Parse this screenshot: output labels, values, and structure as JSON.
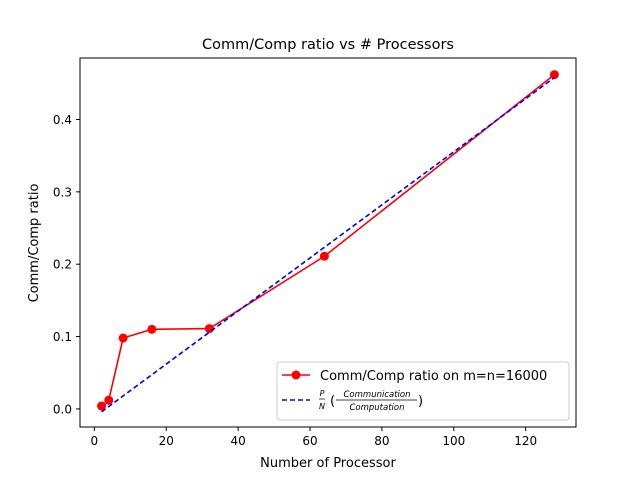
{
  "chart_data": {
    "type": "line",
    "title": "Comm/Comp ratio vs # Processors",
    "xlabel": "Number of Processor",
    "ylabel": "Comm/Comp ratio",
    "xlim": [
      -4,
      134
    ],
    "ylim": [
      -0.025,
      0.485
    ],
    "xticks": [
      0,
      20,
      40,
      60,
      80,
      100,
      120
    ],
    "yticks": [
      0.0,
      0.1,
      0.2,
      0.3,
      0.4
    ],
    "xtick_labels": [
      "0",
      "20",
      "40",
      "60",
      "80",
      "100",
      "120"
    ],
    "ytick_labels": [
      "0.0",
      "0.1",
      "0.2",
      "0.3",
      "0.4"
    ],
    "grid": false,
    "legend": "bottom-right",
    "series": [
      {
        "name": "Comm/Comp ratio on m=n=16000",
        "color": "#ff0000",
        "style": "solid",
        "marker": "circle",
        "x": [
          2,
          4,
          8,
          16,
          32,
          64,
          128
        ],
        "y": [
          0.004,
          0.012,
          0.098,
          0.11,
          0.111,
          0.211,
          0.462
        ]
      },
      {
        "name": "P/N (Communication/Computation)",
        "color": "#0000ff",
        "style": "dashed",
        "marker": "none",
        "x": [
          2,
          128
        ],
        "y": [
          -0.004,
          0.458
        ]
      }
    ]
  }
}
